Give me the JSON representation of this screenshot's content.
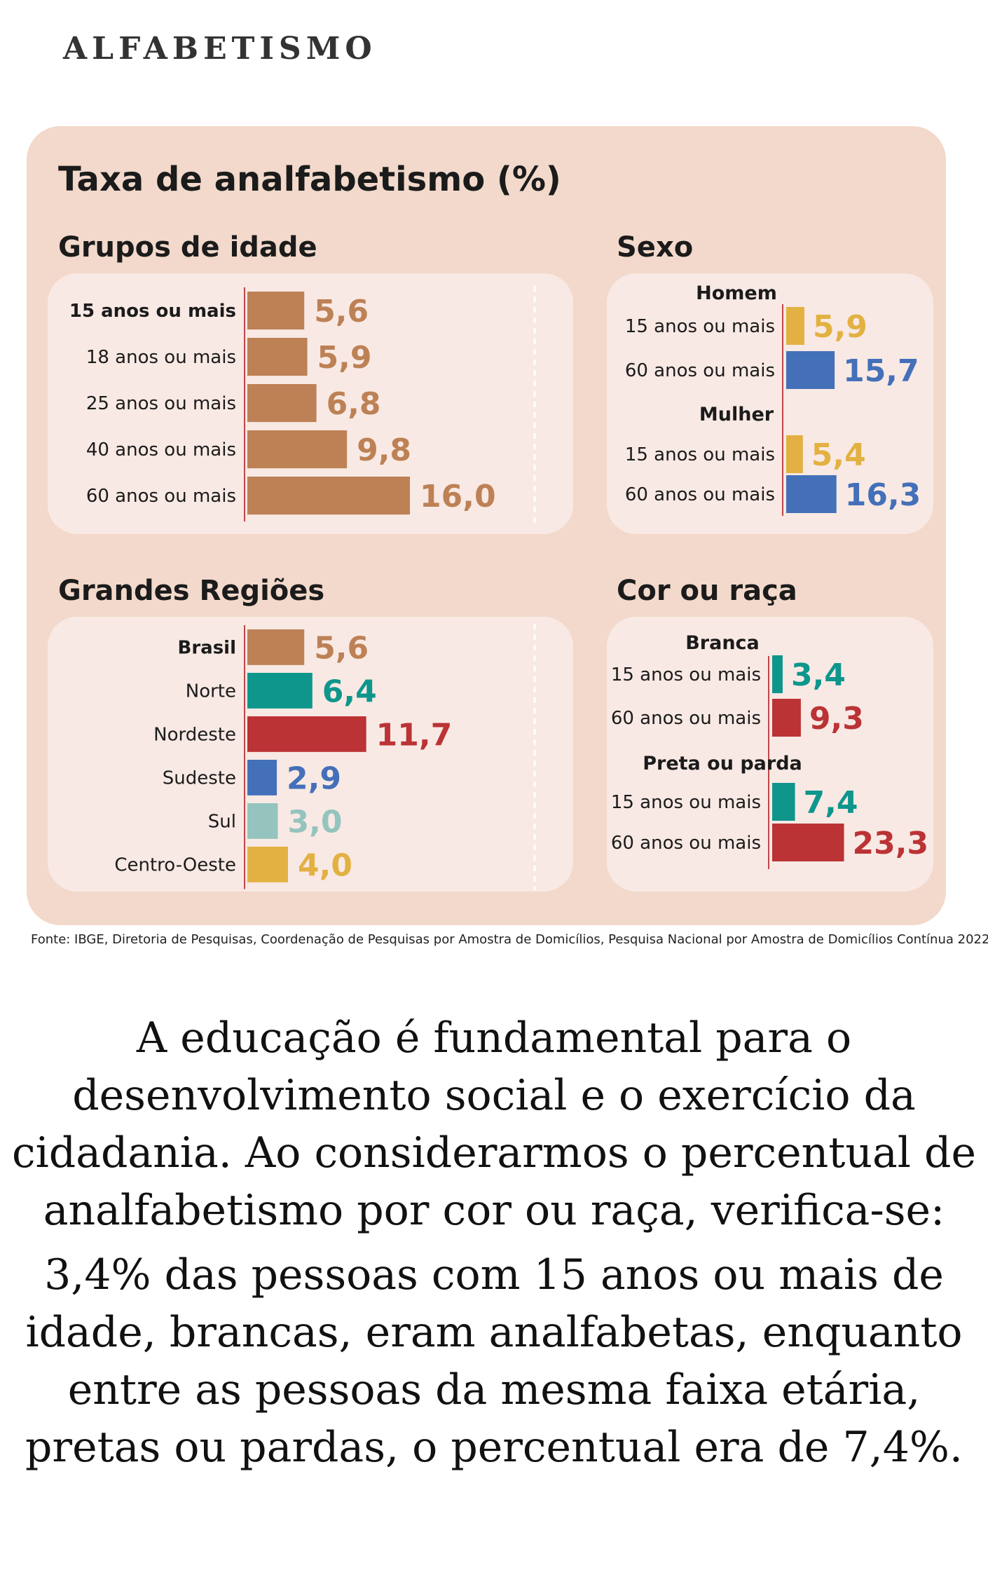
{
  "heading": "ALFABETISMO",
  "chart_title": "Taxa de analfabetismo (%)",
  "source": "Fonte: IBGE, Diretoria de Pesquisas, Coordenação de Pesquisas por Amostra de Domicílios, Pesquisa Nacional por Amostra de Domicílios Contínua 2022.",
  "caption": {
    "paragraph1": "A educação é fundamental para o desenvolvimento social e o exercício da cidadania. Ao considerarmos o percentual de analfabetismo por cor ou raça, verifica-se:",
    "paragraph2": "3,4% das pessoas com 15 anos ou mais de idade, brancas, eram analfabetas, enquanto entre as pessoas da mesma faixa etária, pretas ou pardas, o percentual era de 7,4%."
  },
  "colors": {
    "brown": "#bd8155",
    "teal": "#0e968c",
    "red": "#bb3335",
    "blue": "#4470b9",
    "light_teal": "#94c4bd",
    "yellow": "#e3b142",
    "axis": "#c0454a"
  },
  "chart_data": [
    {
      "type": "bar",
      "title": "Grupos de idade",
      "categories": [
        "15 anos ou mais",
        "18 anos ou mais",
        "25 anos ou mais",
        "40 anos ou mais",
        "60 anos ou mais"
      ],
      "values": [
        5.6,
        5.9,
        6.8,
        9.8,
        16.0
      ],
      "value_labels": [
        "5,6",
        "5,9",
        "6,8",
        "9,8",
        "16,0"
      ],
      "bar_colors": [
        "brown",
        "brown",
        "brown",
        "brown",
        "brown"
      ],
      "bold_categories": [
        0
      ],
      "orientation": "horizontal"
    },
    {
      "type": "bar",
      "title": "Sexo",
      "groups": [
        "Homem",
        "Mulher"
      ],
      "categories": [
        "15 anos ou mais",
        "60 anos ou mais",
        "15 anos ou mais",
        "60 anos ou mais"
      ],
      "category_groups": [
        0,
        0,
        1,
        1
      ],
      "values": [
        5.9,
        15.7,
        5.4,
        16.3
      ],
      "value_labels": [
        "5,9",
        "15,7",
        "5,4",
        "16,3"
      ],
      "bar_colors": [
        "yellow",
        "blue",
        "yellow",
        "blue"
      ],
      "orientation": "horizontal"
    },
    {
      "type": "bar",
      "title": "Grandes Regiões",
      "categories": [
        "Brasil",
        "Norte",
        "Nordeste",
        "Sudeste",
        "Sul",
        "Centro-Oeste"
      ],
      "values": [
        5.6,
        6.4,
        11.7,
        2.9,
        3.0,
        4.0
      ],
      "value_labels": [
        "5,6",
        "6,4",
        "11,7",
        "2,9",
        "3,0",
        "4,0"
      ],
      "bar_colors": [
        "brown",
        "teal",
        "red",
        "blue",
        "light_teal",
        "yellow"
      ],
      "bold_categories": [
        0
      ],
      "orientation": "horizontal"
    },
    {
      "type": "bar",
      "title": "Cor ou raça",
      "groups": [
        "Branca",
        "Preta ou parda"
      ],
      "categories": [
        "15 anos ou mais",
        "60 anos ou mais",
        "15 anos ou mais",
        "60 anos ou mais"
      ],
      "category_groups": [
        0,
        0,
        1,
        1
      ],
      "values": [
        3.4,
        9.3,
        7.4,
        23.3
      ],
      "value_labels": [
        "3,4",
        "9,3",
        "7,4",
        "23,3"
      ],
      "bar_colors": [
        "teal",
        "red",
        "teal",
        "red"
      ],
      "orientation": "horizontal"
    }
  ]
}
